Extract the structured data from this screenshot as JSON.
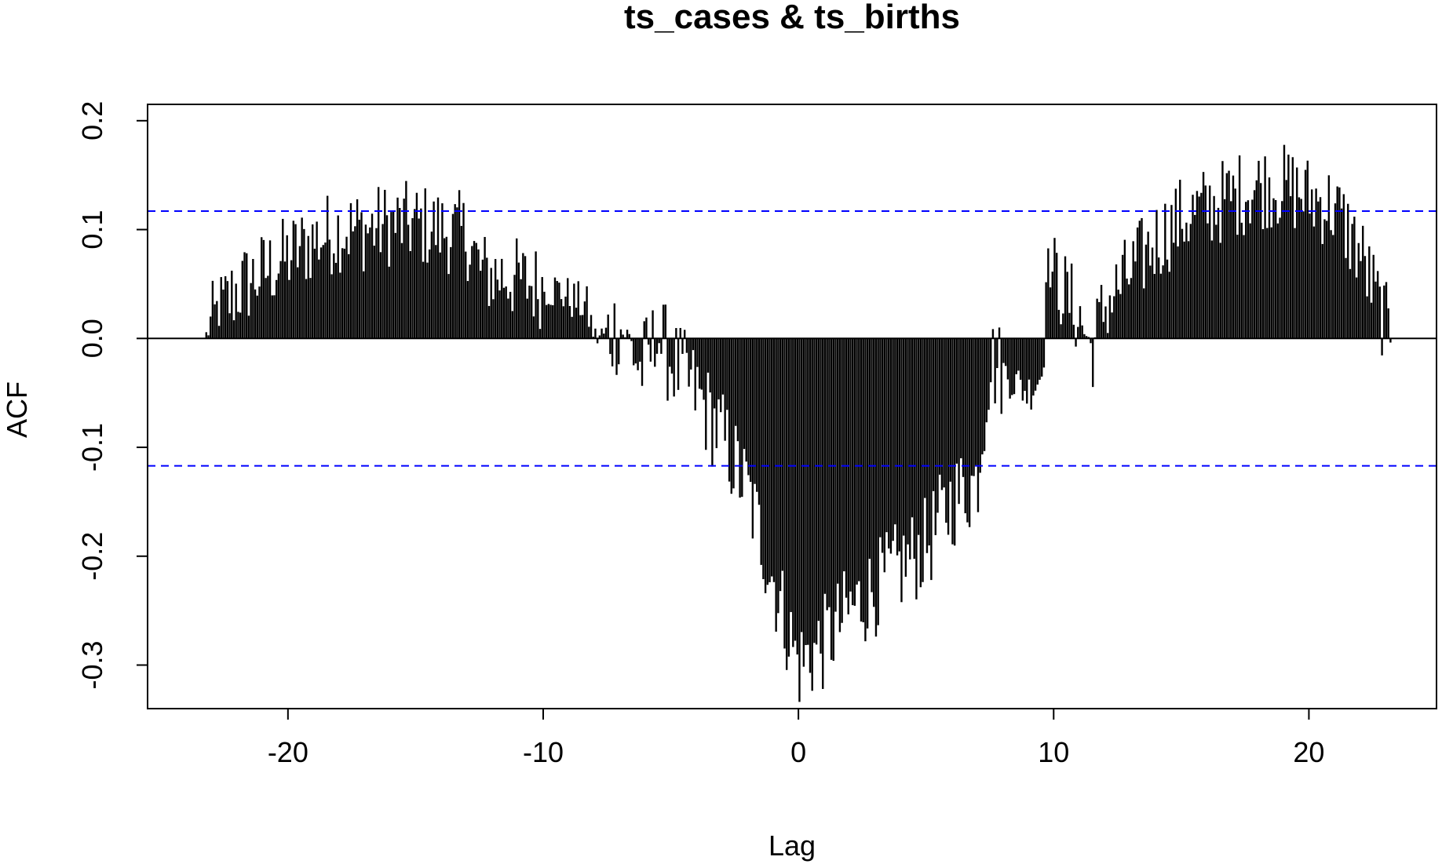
{
  "chart_data": {
    "type": "bar",
    "title": "ts_cases & ts_births",
    "xlabel": "Lag",
    "ylabel": "ACF",
    "xlim": [
      -25.5,
      25
    ],
    "ylim": [
      -0.34,
      0.215
    ],
    "x_ticks": [
      -20,
      -10,
      0,
      10,
      20
    ],
    "x_tick_labels": [
      "-20",
      "-10",
      "0",
      "10",
      "20"
    ],
    "y_ticks": [
      -0.3,
      -0.2,
      -0.1,
      0.0,
      0.1,
      0.2
    ],
    "y_tick_labels": [
      "-0.3",
      "-0.2",
      "-0.1",
      "0.0",
      "0.1",
      "0.2"
    ],
    "confidence_limit": 0.117,
    "confidence_color": "#0000ff",
    "bar_color": "#000000",
    "lag_range": [
      -23.2,
      23.2
    ],
    "lag_step": 0.0833,
    "envelope": [
      [
        -23.2,
        0.002
      ],
      [
        -22.8,
        0.02
      ],
      [
        -22.0,
        0.045
      ],
      [
        -21.0,
        0.06
      ],
      [
        -20.0,
        0.075
      ],
      [
        -19.0,
        0.09
      ],
      [
        -18.0,
        0.1
      ],
      [
        -17.0,
        0.1
      ],
      [
        -16.0,
        0.105
      ],
      [
        -15.0,
        0.105
      ],
      [
        -14.0,
        0.1
      ],
      [
        -13.0,
        0.095
      ],
      [
        -12.4,
        0.06
      ],
      [
        -11.5,
        0.058
      ],
      [
        -10.5,
        0.05
      ],
      [
        -9.5,
        0.045
      ],
      [
        -8.8,
        0.035
      ],
      [
        -8.3,
        0.03
      ],
      [
        -8.0,
        0.0
      ],
      [
        -7.0,
        0.01
      ],
      [
        -6.6,
        0.0
      ],
      [
        -6.2,
        -0.03
      ],
      [
        -5.5,
        0.0
      ],
      [
        -5.0,
        -0.02
      ],
      [
        -4.0,
        -0.05
      ],
      [
        -3.0,
        -0.09
      ],
      [
        -2.0,
        -0.14
      ],
      [
        -1.0,
        -0.22
      ],
      [
        0.0,
        -0.3
      ],
      [
        1.0,
        -0.28
      ],
      [
        2.0,
        -0.25
      ],
      [
        3.0,
        -0.23
      ],
      [
        4.0,
        -0.21
      ],
      [
        5.0,
        -0.19
      ],
      [
        6.0,
        -0.15
      ],
      [
        7.0,
        -0.13
      ],
      [
        7.5,
        -0.02
      ],
      [
        8.0,
        -0.03
      ],
      [
        9.0,
        -0.05
      ],
      [
        9.6,
        -0.03
      ],
      [
        9.7,
        0.07
      ],
      [
        10.5,
        0.04
      ],
      [
        11.0,
        0.02
      ],
      [
        11.5,
        -0.01
      ],
      [
        12.0,
        0.03
      ],
      [
        13.0,
        0.06
      ],
      [
        14.0,
        0.09
      ],
      [
        15.0,
        0.11
      ],
      [
        16.0,
        0.12
      ],
      [
        17.0,
        0.13
      ],
      [
        18.0,
        0.14
      ],
      [
        19.0,
        0.14
      ],
      [
        20.0,
        0.13
      ],
      [
        21.0,
        0.12
      ],
      [
        22.0,
        0.08
      ],
      [
        22.6,
        0.04
      ],
      [
        23.2,
        0.001
      ]
    ]
  }
}
